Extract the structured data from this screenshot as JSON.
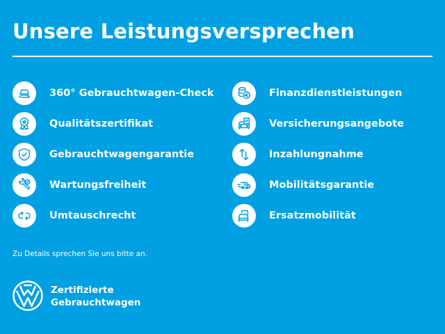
{
  "header": {
    "title": "Unsere Leistungsversprechen"
  },
  "services_left": [
    {
      "label": "360° Gebrauchtwagen-Check",
      "icon": "car-check-icon"
    },
    {
      "label": "Qualitätszertifikat",
      "icon": "award-ribbon-icon"
    },
    {
      "label": "Gebrauchtwagengarantie",
      "icon": "shield-check-icon"
    },
    {
      "label": "Wartungsfreiheit",
      "icon": "wrench-check-icon"
    },
    {
      "label": "Umtauschrecht",
      "icon": "exchange-arrows-icon"
    }
  ],
  "services_right": [
    {
      "label": "Finanzdienstleistungen",
      "icon": "coins-euro-icon"
    },
    {
      "label": "Versicherungsangebote",
      "icon": "car-document-icon"
    },
    {
      "label": "Inzahlungnahme",
      "icon": "up-down-arrows-icon"
    },
    {
      "label": "Mobilitätsgarantie",
      "icon": "tow-truck-icon"
    },
    {
      "label": "Ersatzmobilität",
      "icon": "cars-stack-icon"
    }
  ],
  "footer": {
    "note": "Zu Details sprechen Sie uns bitte an.",
    "brand_line1": "Zertifizierte",
    "brand_line2": "Gebrauchtwagen"
  },
  "colors": {
    "background": "#00A0E3",
    "foreground": "#FFFFFF"
  }
}
